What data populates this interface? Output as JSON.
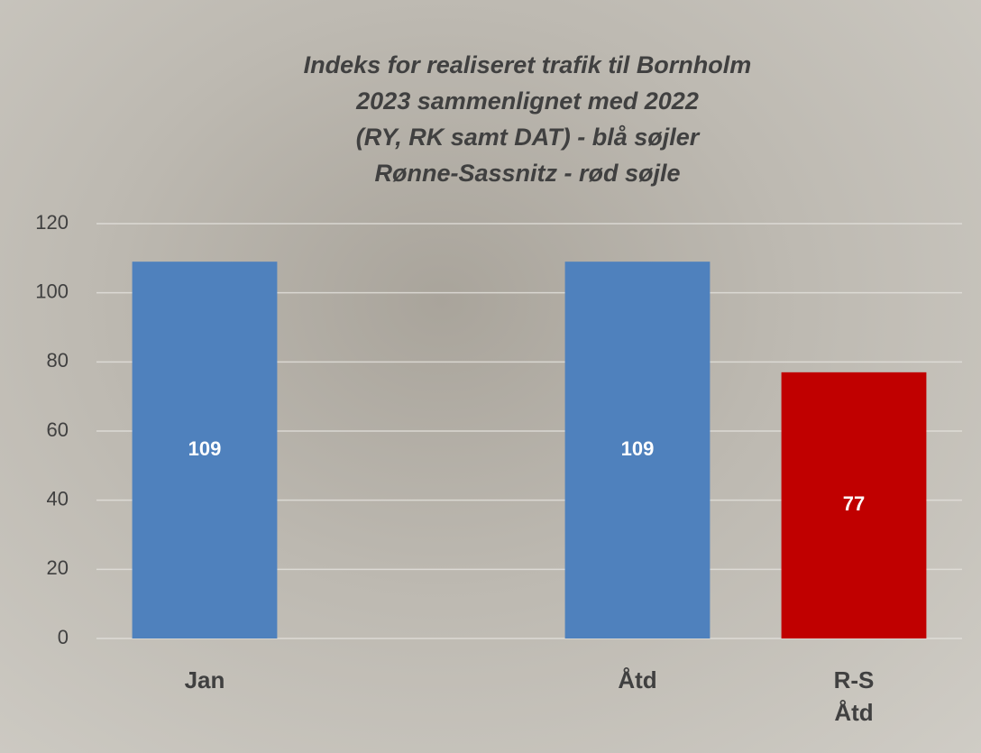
{
  "chart_data": {
    "type": "bar",
    "title": [
      "Indeks for realiseret trafik til Bornholm",
      "2023 sammenlignet med 2022",
      "(RY, RK samt DAT) - blå søjler",
      "Rønne-Sassnitz - rød søjle"
    ],
    "categories": [
      "Jan",
      null,
      "Åtd",
      "R-S Åtd"
    ],
    "values": [
      109,
      null,
      109,
      77
    ],
    "colors": [
      "#4f81bd",
      null,
      "#4f81bd",
      "#c00000"
    ],
    "ylim": [
      0,
      120
    ],
    "yticks": [
      0,
      20,
      40,
      60,
      80,
      100,
      120
    ],
    "grid": true
  }
}
